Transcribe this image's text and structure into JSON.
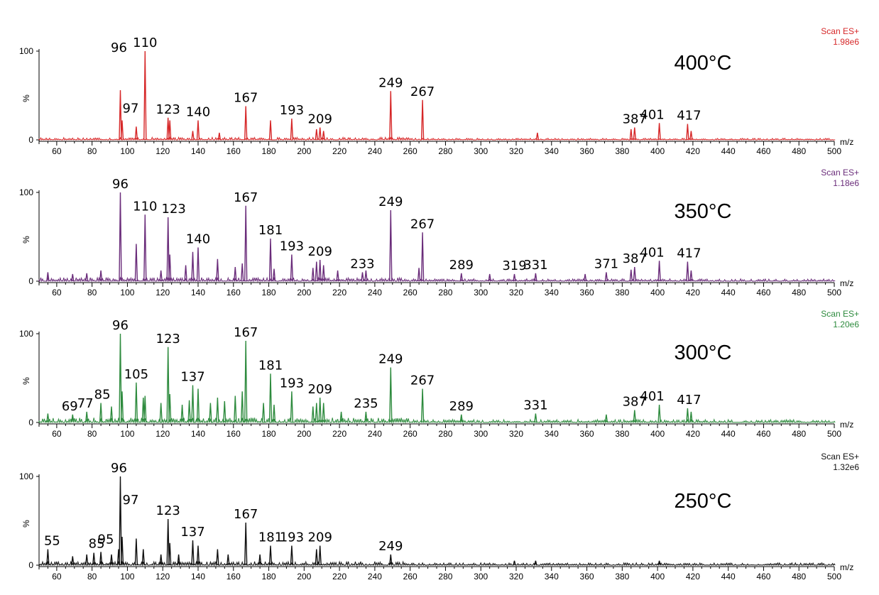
{
  "chart_data": [
    {
      "type": "line",
      "title": "400°C",
      "scan_label": "Scan ES+",
      "intensity": "1.98e6",
      "color": "#d62728",
      "xlabel": "m/z",
      "ylabel": "%",
      "xlim": [
        50,
        500
      ],
      "ylim": [
        0,
        100
      ],
      "x_ticks": [
        60,
        80,
        100,
        120,
        140,
        160,
        180,
        200,
        220,
        240,
        260,
        280,
        300,
        320,
        340,
        360,
        380,
        400,
        420,
        440,
        460,
        480,
        500
      ],
      "y_ticks": [
        0,
        100
      ],
      "peaks": [
        {
          "x": 96,
          "y": 56
        },
        {
          "x": 97,
          "y": 22
        },
        {
          "x": 105,
          "y": 15
        },
        {
          "x": 110,
          "y": 100
        },
        {
          "x": 123,
          "y": 25
        },
        {
          "x": 124,
          "y": 22
        },
        {
          "x": 137,
          "y": 10
        },
        {
          "x": 140,
          "y": 22
        },
        {
          "x": 152,
          "y": 8
        },
        {
          "x": 167,
          "y": 38
        },
        {
          "x": 181,
          "y": 22
        },
        {
          "x": 193,
          "y": 24
        },
        {
          "x": 207,
          "y": 12
        },
        {
          "x": 209,
          "y": 14
        },
        {
          "x": 211,
          "y": 10
        },
        {
          "x": 249,
          "y": 55
        },
        {
          "x": 267,
          "y": 45
        },
        {
          "x": 332,
          "y": 8
        },
        {
          "x": 385,
          "y": 12
        },
        {
          "x": 387,
          "y": 14
        },
        {
          "x": 401,
          "y": 19
        },
        {
          "x": 417,
          "y": 18
        },
        {
          "x": 419,
          "y": 10
        }
      ],
      "annotations": [
        {
          "label": "96",
          "x": 96
        },
        {
          "label": "97",
          "x": 97
        },
        {
          "label": "110",
          "x": 110
        },
        {
          "label": "123",
          "x": 123
        },
        {
          "label": "140",
          "x": 140
        },
        {
          "label": "167",
          "x": 167
        },
        {
          "label": "193",
          "x": 193
        },
        {
          "label": "209",
          "x": 209
        },
        {
          "label": "249",
          "x": 249
        },
        {
          "label": "267",
          "x": 267
        },
        {
          "label": "387",
          "x": 387
        },
        {
          "label": "401",
          "x": 401
        },
        {
          "label": "417",
          "x": 417
        }
      ]
    },
    {
      "type": "line",
      "title": "350°C",
      "scan_label": "Scan ES+",
      "intensity": "1.18e6",
      "color": "#6a2c7a",
      "xlabel": "m/z",
      "ylabel": "%",
      "xlim": [
        50,
        500
      ],
      "ylim": [
        0,
        100
      ],
      "x_ticks": [
        60,
        80,
        100,
        120,
        140,
        160,
        180,
        200,
        220,
        240,
        260,
        280,
        300,
        320,
        340,
        360,
        380,
        400,
        420,
        440,
        460,
        480,
        500
      ],
      "y_ticks": [
        0,
        100
      ],
      "peaks": [
        {
          "x": 55,
          "y": 10
        },
        {
          "x": 69,
          "y": 8
        },
        {
          "x": 77,
          "y": 9
        },
        {
          "x": 85,
          "y": 12
        },
        {
          "x": 96,
          "y": 100
        },
        {
          "x": 105,
          "y": 42
        },
        {
          "x": 110,
          "y": 75
        },
        {
          "x": 119,
          "y": 12
        },
        {
          "x": 123,
          "y": 72
        },
        {
          "x": 124,
          "y": 30
        },
        {
          "x": 133,
          "y": 18
        },
        {
          "x": 137,
          "y": 33
        },
        {
          "x": 140,
          "y": 38
        },
        {
          "x": 151,
          "y": 25
        },
        {
          "x": 161,
          "y": 16
        },
        {
          "x": 165,
          "y": 20
        },
        {
          "x": 167,
          "y": 85
        },
        {
          "x": 181,
          "y": 48
        },
        {
          "x": 183,
          "y": 14
        },
        {
          "x": 193,
          "y": 30
        },
        {
          "x": 205,
          "y": 15
        },
        {
          "x": 207,
          "y": 22
        },
        {
          "x": 209,
          "y": 24
        },
        {
          "x": 211,
          "y": 18
        },
        {
          "x": 219,
          "y": 12
        },
        {
          "x": 233,
          "y": 10
        },
        {
          "x": 235,
          "y": 12
        },
        {
          "x": 249,
          "y": 80
        },
        {
          "x": 265,
          "y": 15
        },
        {
          "x": 267,
          "y": 55
        },
        {
          "x": 289,
          "y": 9
        },
        {
          "x": 305,
          "y": 8
        },
        {
          "x": 319,
          "y": 8
        },
        {
          "x": 331,
          "y": 9
        },
        {
          "x": 359,
          "y": 8
        },
        {
          "x": 371,
          "y": 10
        },
        {
          "x": 385,
          "y": 13
        },
        {
          "x": 387,
          "y": 16
        },
        {
          "x": 401,
          "y": 23
        },
        {
          "x": 417,
          "y": 22
        },
        {
          "x": 419,
          "y": 12
        }
      ],
      "annotations": [
        {
          "label": "96",
          "x": 96
        },
        {
          "label": "110",
          "x": 110
        },
        {
          "label": "123",
          "x": 123
        },
        {
          "label": "140",
          "x": 140
        },
        {
          "label": "167",
          "x": 167
        },
        {
          "label": "181",
          "x": 181
        },
        {
          "label": "193",
          "x": 193
        },
        {
          "label": "209",
          "x": 209
        },
        {
          "label": "233",
          "x": 233
        },
        {
          "label": "249",
          "x": 249
        },
        {
          "label": "267",
          "x": 267
        },
        {
          "label": "289",
          "x": 289
        },
        {
          "label": "319",
          "x": 319
        },
        {
          "label": "331",
          "x": 331
        },
        {
          "label": "371",
          "x": 371
        },
        {
          "label": "387",
          "x": 387
        },
        {
          "label": "401",
          "x": 401
        },
        {
          "label": "417",
          "x": 417
        }
      ]
    },
    {
      "type": "line",
      "title": "300°C",
      "scan_label": "Scan ES+",
      "intensity": "1.20e6",
      "color": "#2e8b3e",
      "xlabel": "m/z",
      "ylabel": "%",
      "xlim": [
        50,
        500
      ],
      "ylim": [
        0,
        100
      ],
      "x_ticks": [
        60,
        80,
        100,
        120,
        140,
        160,
        180,
        200,
        220,
        240,
        260,
        280,
        300,
        320,
        340,
        360,
        380,
        400,
        420,
        440,
        460,
        480,
        500
      ],
      "y_ticks": [
        0,
        100
      ],
      "peaks": [
        {
          "x": 55,
          "y": 10
        },
        {
          "x": 69,
          "y": 9
        },
        {
          "x": 77,
          "y": 12
        },
        {
          "x": 85,
          "y": 22
        },
        {
          "x": 91,
          "y": 18
        },
        {
          "x": 96,
          "y": 100
        },
        {
          "x": 97,
          "y": 35
        },
        {
          "x": 105,
          "y": 45
        },
        {
          "x": 109,
          "y": 28
        },
        {
          "x": 110,
          "y": 30
        },
        {
          "x": 119,
          "y": 22
        },
        {
          "x": 123,
          "y": 85
        },
        {
          "x": 124,
          "y": 32
        },
        {
          "x": 131,
          "y": 20
        },
        {
          "x": 135,
          "y": 25
        },
        {
          "x": 137,
          "y": 42
        },
        {
          "x": 140,
          "y": 38
        },
        {
          "x": 147,
          "y": 22
        },
        {
          "x": 151,
          "y": 28
        },
        {
          "x": 155,
          "y": 24
        },
        {
          "x": 161,
          "y": 30
        },
        {
          "x": 165,
          "y": 35
        },
        {
          "x": 167,
          "y": 92
        },
        {
          "x": 177,
          "y": 22
        },
        {
          "x": 181,
          "y": 55
        },
        {
          "x": 183,
          "y": 20
        },
        {
          "x": 193,
          "y": 35
        },
        {
          "x": 205,
          "y": 18
        },
        {
          "x": 207,
          "y": 22
        },
        {
          "x": 209,
          "y": 28
        },
        {
          "x": 211,
          "y": 22
        },
        {
          "x": 221,
          "y": 12
        },
        {
          "x": 235,
          "y": 12
        },
        {
          "x": 249,
          "y": 62
        },
        {
          "x": 267,
          "y": 38
        },
        {
          "x": 289,
          "y": 9
        },
        {
          "x": 331,
          "y": 10
        },
        {
          "x": 371,
          "y": 9
        },
        {
          "x": 387,
          "y": 14
        },
        {
          "x": 401,
          "y": 20
        },
        {
          "x": 417,
          "y": 16
        },
        {
          "x": 419,
          "y": 12
        }
      ],
      "annotations": [
        {
          "label": "69",
          "x": 69
        },
        {
          "label": "77",
          "x": 77
        },
        {
          "label": "85",
          "x": 85
        },
        {
          "label": "96",
          "x": 96
        },
        {
          "label": "105",
          "x": 105
        },
        {
          "label": "123",
          "x": 123
        },
        {
          "label": "137",
          "x": 137
        },
        {
          "label": "167",
          "x": 167
        },
        {
          "label": "181",
          "x": 181
        },
        {
          "label": "193",
          "x": 193
        },
        {
          "label": "209",
          "x": 209
        },
        {
          "label": "235",
          "x": 235
        },
        {
          "label": "249",
          "x": 249
        },
        {
          "label": "267",
          "x": 267
        },
        {
          "label": "289",
          "x": 289
        },
        {
          "label": "331",
          "x": 331
        },
        {
          "label": "387",
          "x": 387
        },
        {
          "label": "401",
          "x": 401
        },
        {
          "label": "417",
          "x": 417
        }
      ]
    },
    {
      "type": "line",
      "title": "250°C",
      "scan_label": "Scan ES+",
      "intensity": "1.32e6",
      "color": "#111111",
      "xlabel": "m/z",
      "ylabel": "%",
      "xlim": [
        50,
        500
      ],
      "ylim": [
        0,
        100
      ],
      "x_ticks": [
        60,
        80,
        100,
        120,
        140,
        160,
        180,
        200,
        220,
        240,
        260,
        280,
        300,
        320,
        340,
        360,
        380,
        400,
        420,
        440,
        460,
        480,
        500
      ],
      "y_ticks": [
        0,
        100
      ],
      "peaks": [
        {
          "x": 55,
          "y": 18
        },
        {
          "x": 69,
          "y": 10
        },
        {
          "x": 77,
          "y": 12
        },
        {
          "x": 81,
          "y": 14
        },
        {
          "x": 85,
          "y": 15
        },
        {
          "x": 91,
          "y": 12
        },
        {
          "x": 95,
          "y": 18
        },
        {
          "x": 96,
          "y": 100
        },
        {
          "x": 97,
          "y": 32
        },
        {
          "x": 105,
          "y": 30
        },
        {
          "x": 109,
          "y": 18
        },
        {
          "x": 119,
          "y": 12
        },
        {
          "x": 123,
          "y": 52
        },
        {
          "x": 124,
          "y": 25
        },
        {
          "x": 129,
          "y": 12
        },
        {
          "x": 137,
          "y": 28
        },
        {
          "x": 140,
          "y": 22
        },
        {
          "x": 151,
          "y": 18
        },
        {
          "x": 157,
          "y": 12
        },
        {
          "x": 167,
          "y": 48
        },
        {
          "x": 175,
          "y": 12
        },
        {
          "x": 181,
          "y": 22
        },
        {
          "x": 193,
          "y": 22
        },
        {
          "x": 207,
          "y": 18
        },
        {
          "x": 209,
          "y": 22
        },
        {
          "x": 249,
          "y": 12
        },
        {
          "x": 319,
          "y": 5
        },
        {
          "x": 331,
          "y": 5
        },
        {
          "x": 401,
          "y": 5
        }
      ],
      "annotations": [
        {
          "label": "55",
          "x": 55
        },
        {
          "label": "85",
          "x": 85
        },
        {
          "label": "95",
          "x": 95
        },
        {
          "label": "96",
          "x": 96
        },
        {
          "label": "97",
          "x": 97
        },
        {
          "label": "123",
          "x": 123
        },
        {
          "label": "137",
          "x": 137
        },
        {
          "label": "167",
          "x": 167
        },
        {
          "label": "181",
          "x": 181
        },
        {
          "label": "193",
          "x": 193
        },
        {
          "label": "209",
          "x": 209
        },
        {
          "label": "249",
          "x": 249
        }
      ]
    }
  ]
}
